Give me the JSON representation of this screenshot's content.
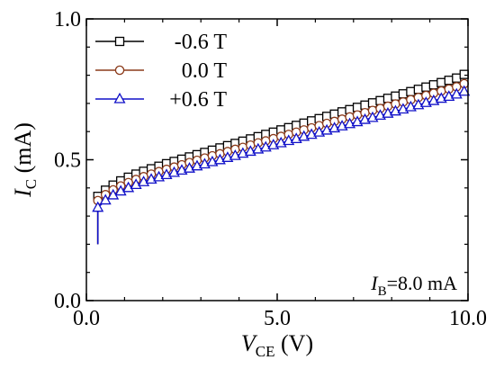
{
  "chart_data": {
    "type": "line",
    "xlabel": {
      "main": "V",
      "sub": "CE",
      "unit": " (V)"
    },
    "ylabel": {
      "main": "I",
      "sub": "C",
      "unit": " (mA)"
    },
    "xlim": [
      0,
      10
    ],
    "ylim": [
      0,
      1.0
    ],
    "xticks": [
      {
        "value": 0.0,
        "label": "0.0"
      },
      {
        "value": 5.0,
        "label": "5.0"
      },
      {
        "value": 10.0,
        "label": "10.0"
      }
    ],
    "yticks": [
      {
        "value": 0.0,
        "label": "0.0"
      },
      {
        "value": 0.5,
        "label": "0.5"
      },
      {
        "value": 1.0,
        "label": "1.0"
      }
    ],
    "grid": false,
    "legend_position": "top-left",
    "annotation": {
      "main": "I",
      "sub": "B",
      "rest": "=8.0 mA"
    },
    "series": [
      {
        "name": "-0.6 T",
        "color": "#000000",
        "marker": "square",
        "vertical_rise": [
          0.2,
          0.37
        ],
        "x": [
          0.3,
          0.5,
          0.7,
          0.9,
          1.1,
          1.3,
          1.5,
          1.7,
          1.9,
          2.1,
          2.3,
          2.5,
          2.7,
          2.9,
          3.1,
          3.3,
          3.5,
          3.7,
          3.9,
          4.1,
          4.3,
          4.5,
          4.7,
          4.9,
          5.1,
          5.3,
          5.5,
          5.7,
          5.9,
          6.1,
          6.3,
          6.5,
          6.7,
          6.9,
          7.1,
          7.3,
          7.5,
          7.7,
          7.9,
          8.1,
          8.3,
          8.5,
          8.7,
          8.9,
          9.1,
          9.3,
          9.5,
          9.7,
          9.9
        ],
        "y": [
          0.37,
          0.392,
          0.41,
          0.425,
          0.438,
          0.449,
          0.459,
          0.468,
          0.477,
          0.486,
          0.494,
          0.502,
          0.51,
          0.518,
          0.526,
          0.534,
          0.542,
          0.55,
          0.558,
          0.566,
          0.574,
          0.582,
          0.59,
          0.598,
          0.606,
          0.614,
          0.622,
          0.63,
          0.638,
          0.646,
          0.654,
          0.662,
          0.67,
          0.678,
          0.686,
          0.694,
          0.702,
          0.71,
          0.718,
          0.726,
          0.734,
          0.742,
          0.75,
          0.758,
          0.766,
          0.774,
          0.782,
          0.79,
          0.803
        ]
      },
      {
        "name": "0.0 T",
        "color": "#8B3A1A",
        "marker": "circle",
        "vertical_rise": [
          0.2,
          0.355
        ],
        "x": [
          0.3,
          0.5,
          0.7,
          0.9,
          1.1,
          1.3,
          1.5,
          1.7,
          1.9,
          2.1,
          2.3,
          2.5,
          2.7,
          2.9,
          3.1,
          3.3,
          3.5,
          3.7,
          3.9,
          4.1,
          4.3,
          4.5,
          4.7,
          4.9,
          5.1,
          5.3,
          5.5,
          5.7,
          5.9,
          6.1,
          6.3,
          6.5,
          6.7,
          6.9,
          7.1,
          7.3,
          7.5,
          7.7,
          7.9,
          8.1,
          8.3,
          8.5,
          8.7,
          8.9,
          9.1,
          9.3,
          9.5,
          9.7,
          9.9
        ],
        "y": [
          0.355,
          0.376,
          0.393,
          0.407,
          0.419,
          0.43,
          0.44,
          0.449,
          0.458,
          0.466,
          0.474,
          0.482,
          0.49,
          0.498,
          0.506,
          0.514,
          0.521,
          0.529,
          0.537,
          0.544,
          0.552,
          0.56,
          0.567,
          0.575,
          0.583,
          0.59,
          0.598,
          0.606,
          0.613,
          0.621,
          0.629,
          0.636,
          0.644,
          0.652,
          0.659,
          0.667,
          0.675,
          0.682,
          0.69,
          0.698,
          0.705,
          0.713,
          0.721,
          0.728,
          0.736,
          0.744,
          0.751,
          0.759,
          0.77
        ]
      },
      {
        "name": "+0.6 T",
        "color": "#1010C8",
        "marker": "triangle",
        "vertical_rise": [
          0.2,
          0.33
        ],
        "x": [
          0.3,
          0.5,
          0.7,
          0.9,
          1.1,
          1.3,
          1.5,
          1.7,
          1.9,
          2.1,
          2.3,
          2.5,
          2.7,
          2.9,
          3.1,
          3.3,
          3.5,
          3.7,
          3.9,
          4.1,
          4.3,
          4.5,
          4.7,
          4.9,
          5.1,
          5.3,
          5.5,
          5.7,
          5.9,
          6.1,
          6.3,
          6.5,
          6.7,
          6.9,
          7.1,
          7.3,
          7.5,
          7.7,
          7.9,
          8.1,
          8.3,
          8.5,
          8.7,
          8.9,
          9.1,
          9.3,
          9.5,
          9.7,
          9.9
        ],
        "y": [
          0.33,
          0.356,
          0.374,
          0.388,
          0.4,
          0.411,
          0.421,
          0.43,
          0.438,
          0.446,
          0.454,
          0.462,
          0.469,
          0.477,
          0.484,
          0.492,
          0.499,
          0.507,
          0.514,
          0.522,
          0.529,
          0.537,
          0.544,
          0.552,
          0.559,
          0.567,
          0.574,
          0.582,
          0.589,
          0.597,
          0.604,
          0.612,
          0.619,
          0.627,
          0.634,
          0.642,
          0.649,
          0.657,
          0.664,
          0.672,
          0.679,
          0.687,
          0.694,
          0.702,
          0.709,
          0.717,
          0.724,
          0.732,
          0.742
        ]
      }
    ]
  }
}
